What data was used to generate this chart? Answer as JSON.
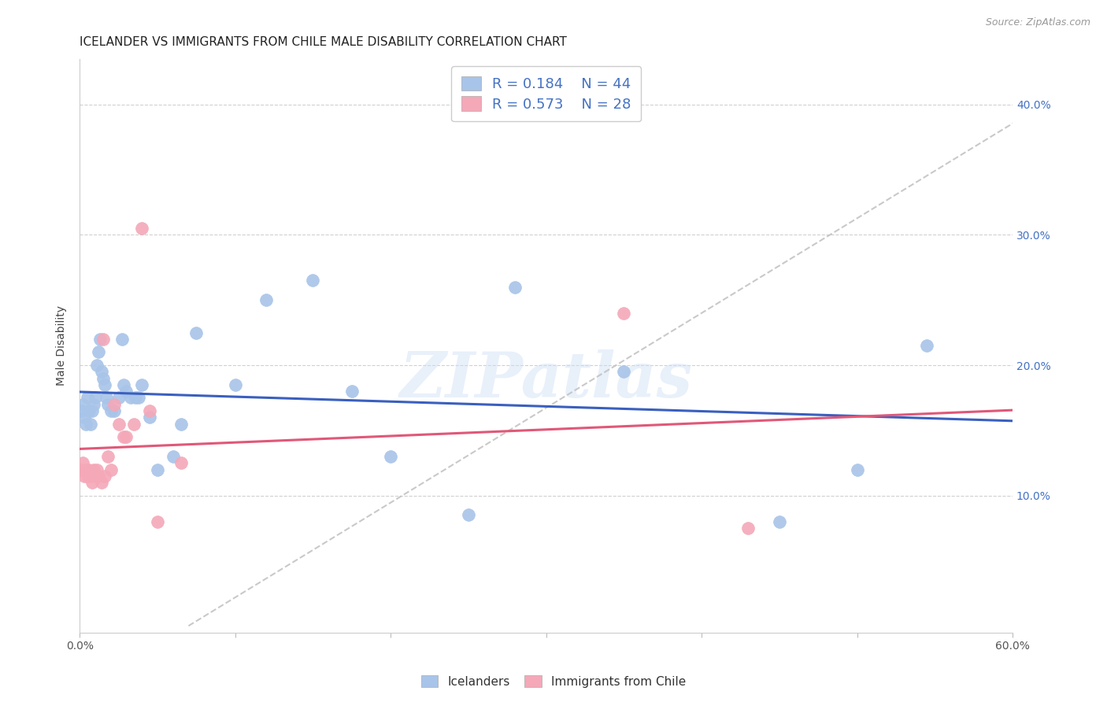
{
  "title": "ICELANDER VS IMMIGRANTS FROM CHILE MALE DISABILITY CORRELATION CHART",
  "source": "Source: ZipAtlas.com",
  "ylabel": "Male Disability",
  "xlim": [
    0.0,
    0.6
  ],
  "ylim": [
    -0.005,
    0.435
  ],
  "y_ticks": [
    0.1,
    0.2,
    0.3,
    0.4
  ],
  "y_tick_labels": [
    "10.0%",
    "20.0%",
    "30.0%",
    "40.0%"
  ],
  "icelanders_color": "#a8c4e8",
  "chile_color": "#f4a8b8",
  "icelanders_line_color": "#3a5fbf",
  "chile_line_color": "#e05878",
  "diagonal_line_color": "#c0c0c0",
  "legend_R1": "0.184",
  "legend_N1": "44",
  "legend_R2": "0.573",
  "legend_N2": "28",
  "icelanders_label": "Icelanders",
  "chile_label": "Immigrants from Chile",
  "watermark": "ZIPatlas",
  "icelanders_x": [
    0.001,
    0.002,
    0.003,
    0.004,
    0.005,
    0.006,
    0.007,
    0.008,
    0.009,
    0.01,
    0.011,
    0.012,
    0.013,
    0.014,
    0.015,
    0.016,
    0.017,
    0.018,
    0.02,
    0.022,
    0.025,
    0.027,
    0.03,
    0.033,
    0.036,
    0.04,
    0.045,
    0.05,
    0.06,
    0.065,
    0.075,
    0.1,
    0.12,
    0.15,
    0.175,
    0.2,
    0.25,
    0.28,
    0.35,
    0.45,
    0.5,
    0.545,
    0.038,
    0.028
  ],
  "icelanders_y": [
    0.165,
    0.17,
    0.16,
    0.155,
    0.175,
    0.165,
    0.155,
    0.165,
    0.17,
    0.175,
    0.2,
    0.21,
    0.22,
    0.195,
    0.19,
    0.185,
    0.175,
    0.17,
    0.165,
    0.165,
    0.175,
    0.22,
    0.18,
    0.175,
    0.175,
    0.185,
    0.16,
    0.12,
    0.13,
    0.155,
    0.225,
    0.185,
    0.25,
    0.265,
    0.18,
    0.13,
    0.085,
    0.26,
    0.195,
    0.08,
    0.12,
    0.215,
    0.175,
    0.185
  ],
  "chile_x": [
    0.001,
    0.002,
    0.003,
    0.004,
    0.005,
    0.006,
    0.007,
    0.008,
    0.009,
    0.01,
    0.011,
    0.012,
    0.014,
    0.016,
    0.018,
    0.02,
    0.022,
    0.025,
    0.03,
    0.035,
    0.04,
    0.045,
    0.05,
    0.065,
    0.35,
    0.43,
    0.015,
    0.028
  ],
  "chile_y": [
    0.12,
    0.125,
    0.115,
    0.12,
    0.115,
    0.12,
    0.115,
    0.11,
    0.12,
    0.115,
    0.12,
    0.115,
    0.11,
    0.115,
    0.13,
    0.12,
    0.17,
    0.155,
    0.145,
    0.155,
    0.305,
    0.165,
    0.08,
    0.125,
    0.24,
    0.075,
    0.22,
    0.145
  ],
  "title_fontsize": 11,
  "axis_label_fontsize": 10,
  "tick_fontsize": 10,
  "legend_fontsize": 13
}
